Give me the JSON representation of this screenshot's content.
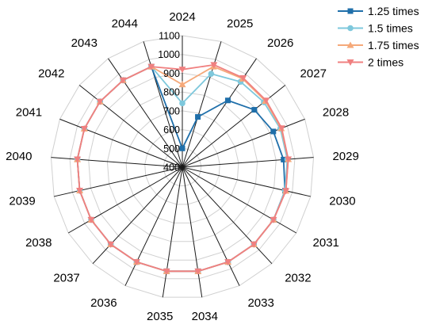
{
  "chart_data": {
    "type": "radar",
    "categories": [
      "2024",
      "2025",
      "2026",
      "2027",
      "2028",
      "2029",
      "2030",
      "2031",
      "2032",
      "2033",
      "2034",
      "2035",
      "2036",
      "2037",
      "2038",
      "2039",
      "2040",
      "2041",
      "2042",
      "2043",
      "2044"
    ],
    "rlim": [
      400,
      1100
    ],
    "ticks": [
      400,
      500,
      600,
      700,
      800,
      900,
      1000,
      1100
    ],
    "grid": true,
    "legend": "top-right",
    "series": [
      {
        "name": "1.25 times",
        "color": "#1f6faa",
        "marker": "square",
        "values": [
          500,
          680,
          830,
          890,
          920,
          940,
          960,
          960,
          960,
          960,
          960,
          960,
          960,
          960,
          960,
          960,
          960,
          960,
          960,
          960,
          960
        ]
      },
      {
        "name": "1.5 times",
        "color": "#7ec8dc",
        "marker": "circle",
        "values": [
          740,
          920,
          950,
          955,
          960,
          960,
          960,
          960,
          960,
          960,
          960,
          960,
          960,
          960,
          960,
          960,
          960,
          960,
          960,
          960,
          960
        ]
      },
      {
        "name": "1.75 times",
        "color": "#f5a97a",
        "marker": "triangle-up",
        "values": [
          840,
          960,
          970,
          965,
          965,
          965,
          965,
          960,
          960,
          960,
          960,
          960,
          960,
          960,
          960,
          960,
          960,
          960,
          960,
          960,
          960
        ]
      },
      {
        "name": "2 times",
        "color": "#f08080",
        "marker": "triangle-down",
        "values": [
          920,
          970,
          975,
          970,
          968,
          965,
          965,
          960,
          960,
          960,
          960,
          960,
          960,
          960,
          960,
          960,
          960,
          960,
          960,
          960,
          960
        ]
      }
    ]
  }
}
